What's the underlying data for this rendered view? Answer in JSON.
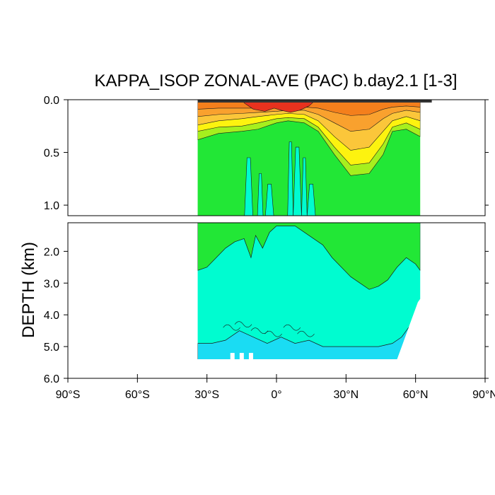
{
  "chart_data": {
    "type": "heatmap",
    "title": "KAPPA_ISOP ZONAL-AVE (PAC) b.day2.1 [1-3]",
    "ylabel": "DEPTH (km)",
    "xlabel": "",
    "xlim": [
      -90,
      90
    ],
    "x_tick_values": [
      -90,
      -60,
      -30,
      0,
      30,
      60,
      90
    ],
    "x_tick_labels": [
      "90°S",
      "60°S",
      "30°S",
      "0°",
      "30°N",
      "60°N",
      "90°N"
    ],
    "upper_panel": {
      "ylim": [
        0,
        1.1
      ],
      "y_tick_values": [
        0,
        0.5,
        1.0
      ],
      "y_tick_labels": [
        "0.0",
        "0.5",
        "1.0"
      ]
    },
    "lower_panel": {
      "ylim": [
        1.1,
        6.0
      ],
      "y_tick_values": [
        2,
        3,
        4,
        5,
        6
      ],
      "y_tick_labels": [
        "2.0",
        "3.0",
        "4.0",
        "5.0",
        "6.0"
      ]
    },
    "data_extent": {
      "lat_south": -34,
      "lat_north": 62,
      "max_depth_south": 5.4,
      "max_depth_north_edge": 3.5
    },
    "colors": {
      "red": "#e8321e",
      "dark_orange": "#f47f1c",
      "orange": "#f9a12e",
      "light_orange": "#fbc63a",
      "yellow": "#fdf30f",
      "yellow_green": "#a6ef1e",
      "green": "#22e736",
      "aqua": "#00fcd0",
      "cyan": "#1adcf3",
      "contour": "#1a1a1a"
    }
  }
}
